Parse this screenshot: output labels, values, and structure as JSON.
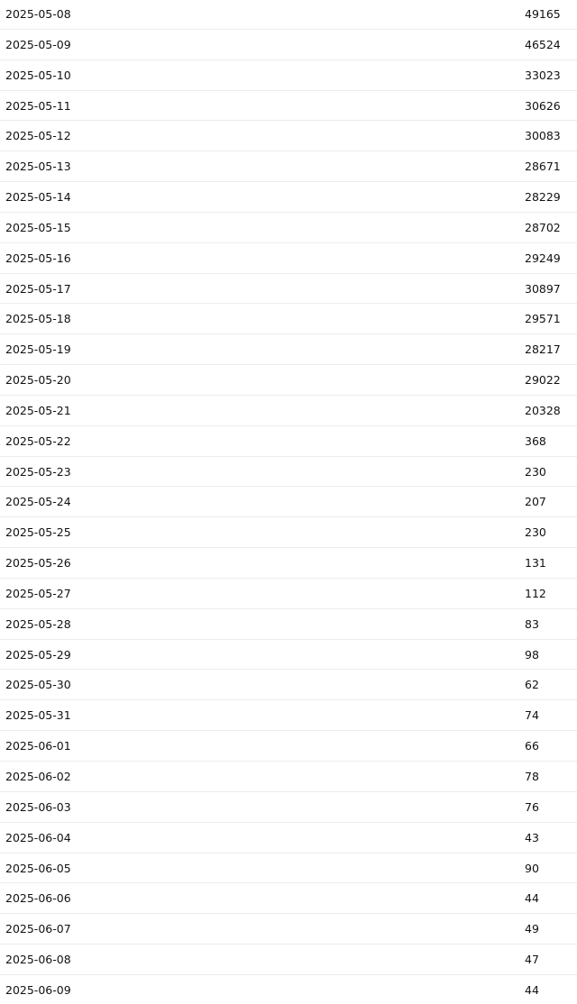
{
  "table": {
    "rows": [
      [
        "2025-05-08",
        49165
      ],
      [
        "2025-05-09",
        46524
      ],
      [
        "2025-05-10",
        33023
      ],
      [
        "2025-05-11",
        30626
      ],
      [
        "2025-05-12",
        30083
      ],
      [
        "2025-05-13",
        28671
      ],
      [
        "2025-05-14",
        28229
      ],
      [
        "2025-05-15",
        28702
      ],
      [
        "2025-05-16",
        29249
      ],
      [
        "2025-05-17",
        30897
      ],
      [
        "2025-05-18",
        29571
      ],
      [
        "2025-05-19",
        28217
      ],
      [
        "2025-05-20",
        29022
      ],
      [
        "2025-05-21",
        20328
      ],
      [
        "2025-05-22",
        368
      ],
      [
        "2025-05-23",
        230
      ],
      [
        "2025-05-24",
        207
      ],
      [
        "2025-05-25",
        230
      ],
      [
        "2025-05-26",
        131
      ],
      [
        "2025-05-27",
        112
      ],
      [
        "2025-05-28",
        83
      ],
      [
        "2025-05-29",
        98
      ],
      [
        "2025-05-30",
        62
      ],
      [
        "2025-05-31",
        74
      ],
      [
        "2025-06-01",
        66
      ],
      [
        "2025-06-02",
        78
      ],
      [
        "2025-06-03",
        76
      ],
      [
        "2025-06-04",
        43
      ],
      [
        "2025-06-05",
        90
      ],
      [
        "2025-06-06",
        44
      ],
      [
        "2025-06-07",
        49
      ],
      [
        "2025-06-08",
        47
      ],
      [
        "2025-06-09",
        44
      ]
    ]
  }
}
